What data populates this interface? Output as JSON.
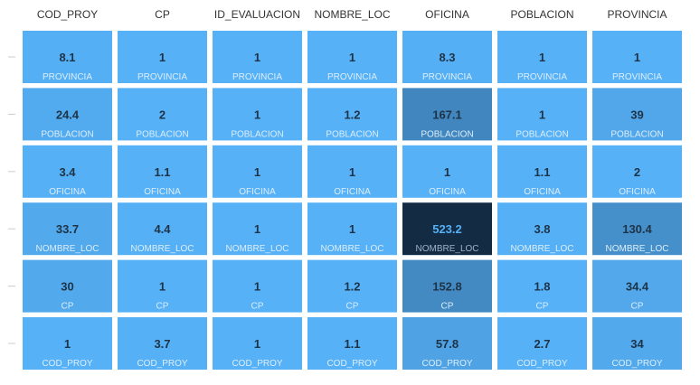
{
  "chart_data": {
    "type": "heatmap",
    "columns": [
      "COD_PROY",
      "CP",
      "ID_EVALUACION",
      "NOMBRE_LOC",
      "OFICINA",
      "POBLACION",
      "PROVINCIA"
    ],
    "rows": [
      "PROVINCIA",
      "POBLACION",
      "OFICINA",
      "NOMBRE_LOC",
      "CP",
      "COD_PROY"
    ],
    "values": [
      [
        "8.1",
        "1",
        "1",
        "1",
        "8.3",
        "1",
        "1"
      ],
      [
        "24.4",
        "2",
        "1",
        "1.2",
        "167.1",
        "1",
        "39"
      ],
      [
        "3.4",
        "1.1",
        "1",
        "1",
        "1",
        "1.1",
        "2"
      ],
      [
        "33.7",
        "4.4",
        "1",
        "1",
        "523.2",
        "3.8",
        "130.4"
      ],
      [
        "30",
        "1",
        "1",
        "1.2",
        "152.8",
        "1.8",
        "34.4"
      ],
      [
        "1",
        "3.7",
        "1",
        "1.1",
        "57.8",
        "2.7",
        "34"
      ]
    ],
    "color_scale": {
      "low": "#56b1f7",
      "high": "#132b43"
    },
    "grid": false,
    "legend": "none"
  }
}
